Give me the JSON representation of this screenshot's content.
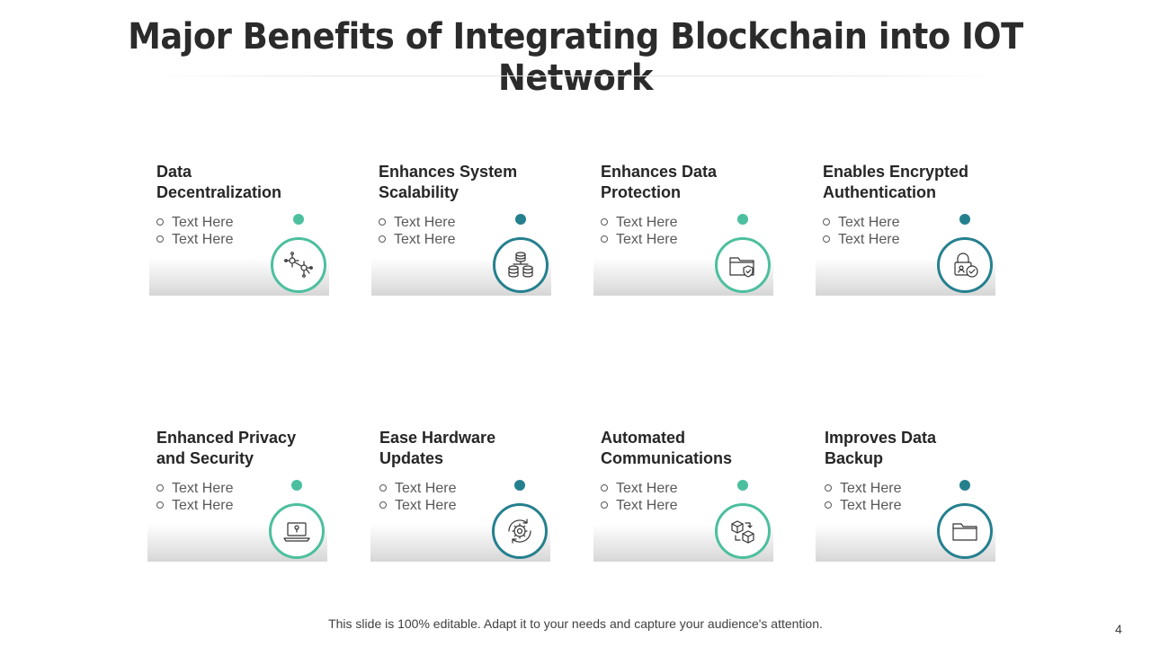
{
  "title": "Major Benefits of Integrating Blockchain into IOT Network",
  "cards": [
    {
      "heading": "Data Decentralization",
      "bullets": [
        "Text Here",
        "Text Here"
      ],
      "icon": "network-nodes-icon",
      "accent": "#4cbf9f"
    },
    {
      "heading": "Enhances System Scalability",
      "bullets": [
        "Text Here",
        "Text Here"
      ],
      "icon": "database-stack-icon",
      "accent": "#25808e"
    },
    {
      "heading": "Enhances Data Protection",
      "bullets": [
        "Text Here",
        "Text Here"
      ],
      "icon": "folder-shield-icon",
      "accent": "#4cbf9f"
    },
    {
      "heading": "Enables Encrypted Authentication",
      "bullets": [
        "Text Here",
        "Text Here"
      ],
      "icon": "lock-check-icon",
      "accent": "#25808e"
    },
    {
      "heading": "Enhanced Privacy and Security",
      "bullets": [
        "Text Here",
        "Text Here"
      ],
      "icon": "laptop-lock-icon",
      "accent": "#4cbf9f"
    },
    {
      "heading": "Ease Hardware Updates",
      "bullets": [
        "Text Here",
        "Text Here"
      ],
      "icon": "gear-refresh-icon",
      "accent": "#25808e"
    },
    {
      "heading": "Automated Communications",
      "bullets": [
        "Text Here",
        "Text Here"
      ],
      "icon": "boxes-transfer-icon",
      "accent": "#4cbf9f"
    },
    {
      "heading": "Improves Data Backup",
      "bullets": [
        "Text Here",
        "Text Here"
      ],
      "icon": "folder-icon",
      "accent": "#25808e"
    }
  ],
  "footer": "This slide is 100% editable. Adapt it to your needs and capture your audience's attention.",
  "page_number": "4"
}
